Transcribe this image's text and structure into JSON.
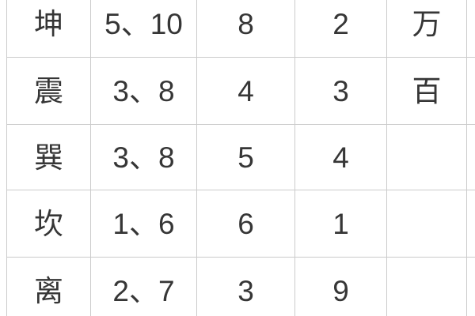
{
  "colors": {
    "background": "#ffffff",
    "grid_border": "#cbcbcb",
    "text": "#363636",
    "right_edge_line": "#e3dcde"
  },
  "table": {
    "description_of_visible_content": "cropped grid table, no headers visible",
    "rows": [
      {
        "c0": "坤",
        "c1": "5、10",
        "c2": "8",
        "c3": "2",
        "c4": "万",
        "c5": ""
      },
      {
        "c0": "震",
        "c1": "3、8",
        "c2": "4",
        "c3": "3",
        "c4": "百",
        "c5": ""
      },
      {
        "c0": "巽",
        "c1": "3、8",
        "c2": "5",
        "c3": "4",
        "c4": "",
        "c5": ""
      },
      {
        "c0": "坎",
        "c1": "1、6",
        "c2": "6",
        "c3": "1",
        "c4": "",
        "c5": ""
      },
      {
        "c0": "离",
        "c1": "2、7",
        "c2": "3",
        "c3": "9",
        "c4": "",
        "c5": ""
      }
    ]
  }
}
